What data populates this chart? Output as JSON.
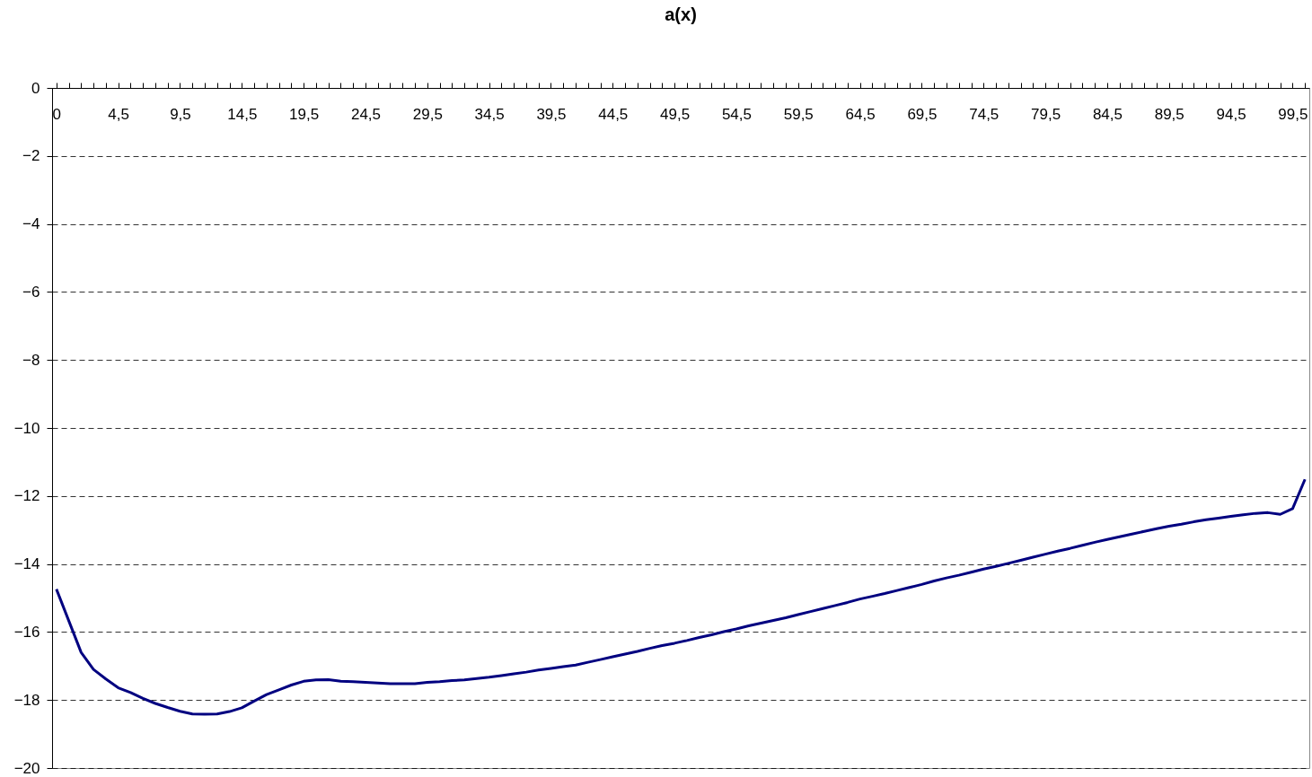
{
  "chart_data": {
    "type": "line",
    "title": "a(x)",
    "categories": [
      "0",
      null,
      null,
      null,
      null,
      "4,5",
      null,
      null,
      null,
      null,
      "9,5",
      null,
      null,
      null,
      null,
      "14,5",
      null,
      null,
      null,
      null,
      "19,5",
      null,
      null,
      null,
      null,
      "24,5",
      null,
      null,
      null,
      null,
      "29,5",
      null,
      null,
      null,
      null,
      "34,5",
      null,
      null,
      null,
      null,
      "39,5",
      null,
      null,
      null,
      null,
      "44,5",
      null,
      null,
      null,
      null,
      "49,5",
      null,
      null,
      null,
      null,
      "54,5",
      null,
      null,
      null,
      null,
      "59,5",
      null,
      null,
      null,
      null,
      "64,5",
      null,
      null,
      null,
      null,
      "69,5",
      null,
      null,
      null,
      null,
      "74,5",
      null,
      null,
      null,
      null,
      "79,5",
      null,
      null,
      null,
      null,
      "84,5",
      null,
      null,
      null,
      null,
      "89,5",
      null,
      null,
      null,
      null,
      "94,5",
      null,
      null,
      null,
      null,
      "99,5",
      null
    ],
    "values": [
      -14.74,
      -15.67,
      -16.6,
      -17.1,
      -17.38,
      -17.64,
      -17.78,
      -17.95,
      -18.1,
      -18.22,
      -18.33,
      -18.41,
      -18.42,
      -18.41,
      -18.34,
      -18.23,
      -18.03,
      -17.84,
      -17.7,
      -17.56,
      -17.45,
      -17.41,
      -17.4,
      -17.45,
      -17.46,
      -17.48,
      -17.5,
      -17.52,
      -17.52,
      -17.52,
      -17.48,
      -17.46,
      -17.43,
      -17.41,
      -17.37,
      -17.33,
      -17.28,
      -17.23,
      -17.18,
      -17.12,
      -17.07,
      -17.02,
      -16.97,
      -16.89,
      -16.81,
      -16.73,
      -16.65,
      -16.57,
      -16.48,
      -16.4,
      -16.33,
      -16.25,
      -16.16,
      -16.08,
      -15.99,
      -15.91,
      -15.82,
      -15.74,
      -15.66,
      -15.58,
      -15.49,
      -15.4,
      -15.31,
      -15.22,
      -15.13,
      -15.03,
      -14.95,
      -14.87,
      -14.78,
      -14.69,
      -14.6,
      -14.5,
      -14.41,
      -14.33,
      -14.24,
      -14.15,
      -14.07,
      -13.98,
      -13.89,
      -13.8,
      -13.71,
      -13.62,
      -13.54,
      -13.45,
      -13.36,
      -13.28,
      -13.2,
      -13.12,
      -13.04,
      -12.96,
      -12.89,
      -12.83,
      -12.76,
      -12.7,
      -12.65,
      -12.6,
      -12.55,
      -12.51,
      -12.49,
      -12.54,
      -12.37,
      -11.51
    ],
    "color": "#000080",
    "ylim": [
      -20,
      0
    ],
    "yticks": [
      -20,
      -18,
      -16,
      -14,
      -12,
      -10,
      -8,
      -6,
      -4,
      -2,
      0
    ],
    "grid": "y",
    "marker": "none"
  }
}
